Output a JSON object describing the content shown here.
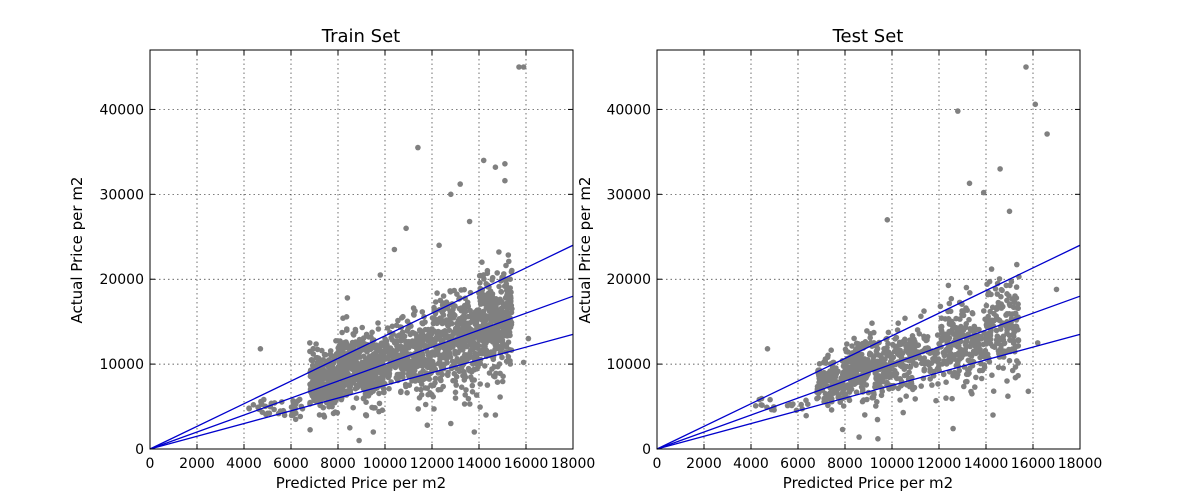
{
  "chart_data": [
    {
      "type": "scatter",
      "title": "Train Set",
      "xlabel": "Predicted Price per m2",
      "ylabel": "Actual Price per m2",
      "xlim": [
        0,
        18000
      ],
      "ylim": [
        0,
        47000
      ],
      "xticks": [
        0,
        2000,
        4000,
        6000,
        8000,
        10000,
        12000,
        14000,
        16000,
        18000
      ],
      "yticks": [
        0,
        10000,
        20000,
        30000,
        40000
      ],
      "grid": true,
      "point_color": "#808080",
      "line_color": "#0000cc",
      "reference_lines": [
        {
          "slope": 1.333,
          "x": [
            0,
            18000
          ],
          "y": [
            0,
            24000
          ]
        },
        {
          "slope": 1.0,
          "x": [
            0,
            18000
          ],
          "y": [
            0,
            18000
          ]
        },
        {
          "slope": 0.75,
          "x": [
            0,
            18000
          ],
          "y": [
            0,
            13500
          ]
        }
      ],
      "clusters": [
        {
          "x_range": [
            4200,
            6500
          ],
          "y_center": 5000,
          "y_spread": 1200,
          "count": 40
        },
        {
          "x_range": [
            6800,
            8000
          ],
          "y_center": 8000,
          "y_spread": 3000,
          "count": 250
        },
        {
          "x_range": [
            8000,
            10000
          ],
          "y_center": 9500,
          "y_spread": 3500,
          "count": 450
        },
        {
          "x_range": [
            10000,
            12000
          ],
          "y_center": 11000,
          "y_spread": 4000,
          "count": 300
        },
        {
          "x_range": [
            12000,
            14000
          ],
          "y_center": 12500,
          "y_spread": 5000,
          "count": 400
        },
        {
          "x_range": [
            14000,
            15400
          ],
          "y_center": 15000,
          "y_spread": 5500,
          "count": 350
        }
      ],
      "points": [
        [
          4700,
          11800
        ],
        [
          5000,
          4200
        ],
        [
          6200,
          3500
        ],
        [
          8900,
          1000
        ],
        [
          8400,
          17800
        ],
        [
          9800,
          20500
        ],
        [
          10400,
          23500
        ],
        [
          10900,
          26000
        ],
        [
          11400,
          35500
        ],
        [
          12300,
          24000
        ],
        [
          12800,
          30000
        ],
        [
          13200,
          31200
        ],
        [
          13600,
          26800
        ],
        [
          14200,
          34000
        ],
        [
          14700,
          33200
        ],
        [
          15100,
          31600
        ],
        [
          15100,
          33600
        ],
        [
          15700,
          45000
        ],
        [
          15900,
          45000
        ],
        [
          16100,
          13000
        ],
        [
          15900,
          10200
        ],
        [
          13800,
          2000
        ],
        [
          11800,
          2800
        ],
        [
          12800,
          3000
        ],
        [
          14300,
          4000
        ],
        [
          14700,
          4000
        ],
        [
          13000,
          6000
        ],
        [
          9500,
          2000
        ],
        [
          8500,
          2500
        ],
        [
          9200,
          4000
        ]
      ]
    },
    {
      "type": "scatter",
      "title": "Test Set",
      "xlabel": "Predicted Price per m2",
      "ylabel": "Actual Price per m2",
      "xlim": [
        0,
        18000
      ],
      "ylim": [
        0,
        47000
      ],
      "xticks": [
        0,
        2000,
        4000,
        6000,
        8000,
        10000,
        12000,
        14000,
        16000,
        18000
      ],
      "yticks": [
        0,
        10000,
        20000,
        30000,
        40000
      ],
      "grid": true,
      "point_color": "#808080",
      "line_color": "#0000cc",
      "reference_lines": [
        {
          "slope": 1.333,
          "x": [
            0,
            18000
          ],
          "y": [
            0,
            24000
          ]
        },
        {
          "slope": 1.0,
          "x": [
            0,
            18000
          ],
          "y": [
            0,
            18000
          ]
        },
        {
          "slope": 0.75,
          "x": [
            0,
            18000
          ],
          "y": [
            0,
            13500
          ]
        }
      ],
      "clusters": [
        {
          "x_range": [
            4200,
            6500
          ],
          "y_center": 5200,
          "y_spread": 1000,
          "count": 20
        },
        {
          "x_range": [
            6800,
            8000
          ],
          "y_center": 7800,
          "y_spread": 2800,
          "count": 150
        },
        {
          "x_range": [
            8000,
            10000
          ],
          "y_center": 9300,
          "y_spread": 3200,
          "count": 280
        },
        {
          "x_range": [
            10000,
            12000
          ],
          "y_center": 10800,
          "y_spread": 3500,
          "count": 170
        },
        {
          "x_range": [
            12000,
            14000
          ],
          "y_center": 12500,
          "y_spread": 4500,
          "count": 220
        },
        {
          "x_range": [
            14000,
            15400
          ],
          "y_center": 14500,
          "y_spread": 5000,
          "count": 170
        }
      ],
      "points": [
        [
          4700,
          11800
        ],
        [
          9800,
          27000
        ],
        [
          12800,
          39800
        ],
        [
          13300,
          31300
        ],
        [
          13900,
          30200
        ],
        [
          14600,
          33000
        ],
        [
          15000,
          28000
        ],
        [
          15700,
          45000
        ],
        [
          16100,
          40600
        ],
        [
          16600,
          37100
        ],
        [
          17000,
          18800
        ],
        [
          16200,
          12500
        ],
        [
          15800,
          6800
        ],
        [
          14300,
          4000
        ],
        [
          12600,
          2400
        ],
        [
          9400,
          1200
        ],
        [
          8600,
          1400
        ],
        [
          7900,
          2300
        ],
        [
          12300,
          6000
        ],
        [
          13400,
          6500
        ]
      ]
    }
  ]
}
